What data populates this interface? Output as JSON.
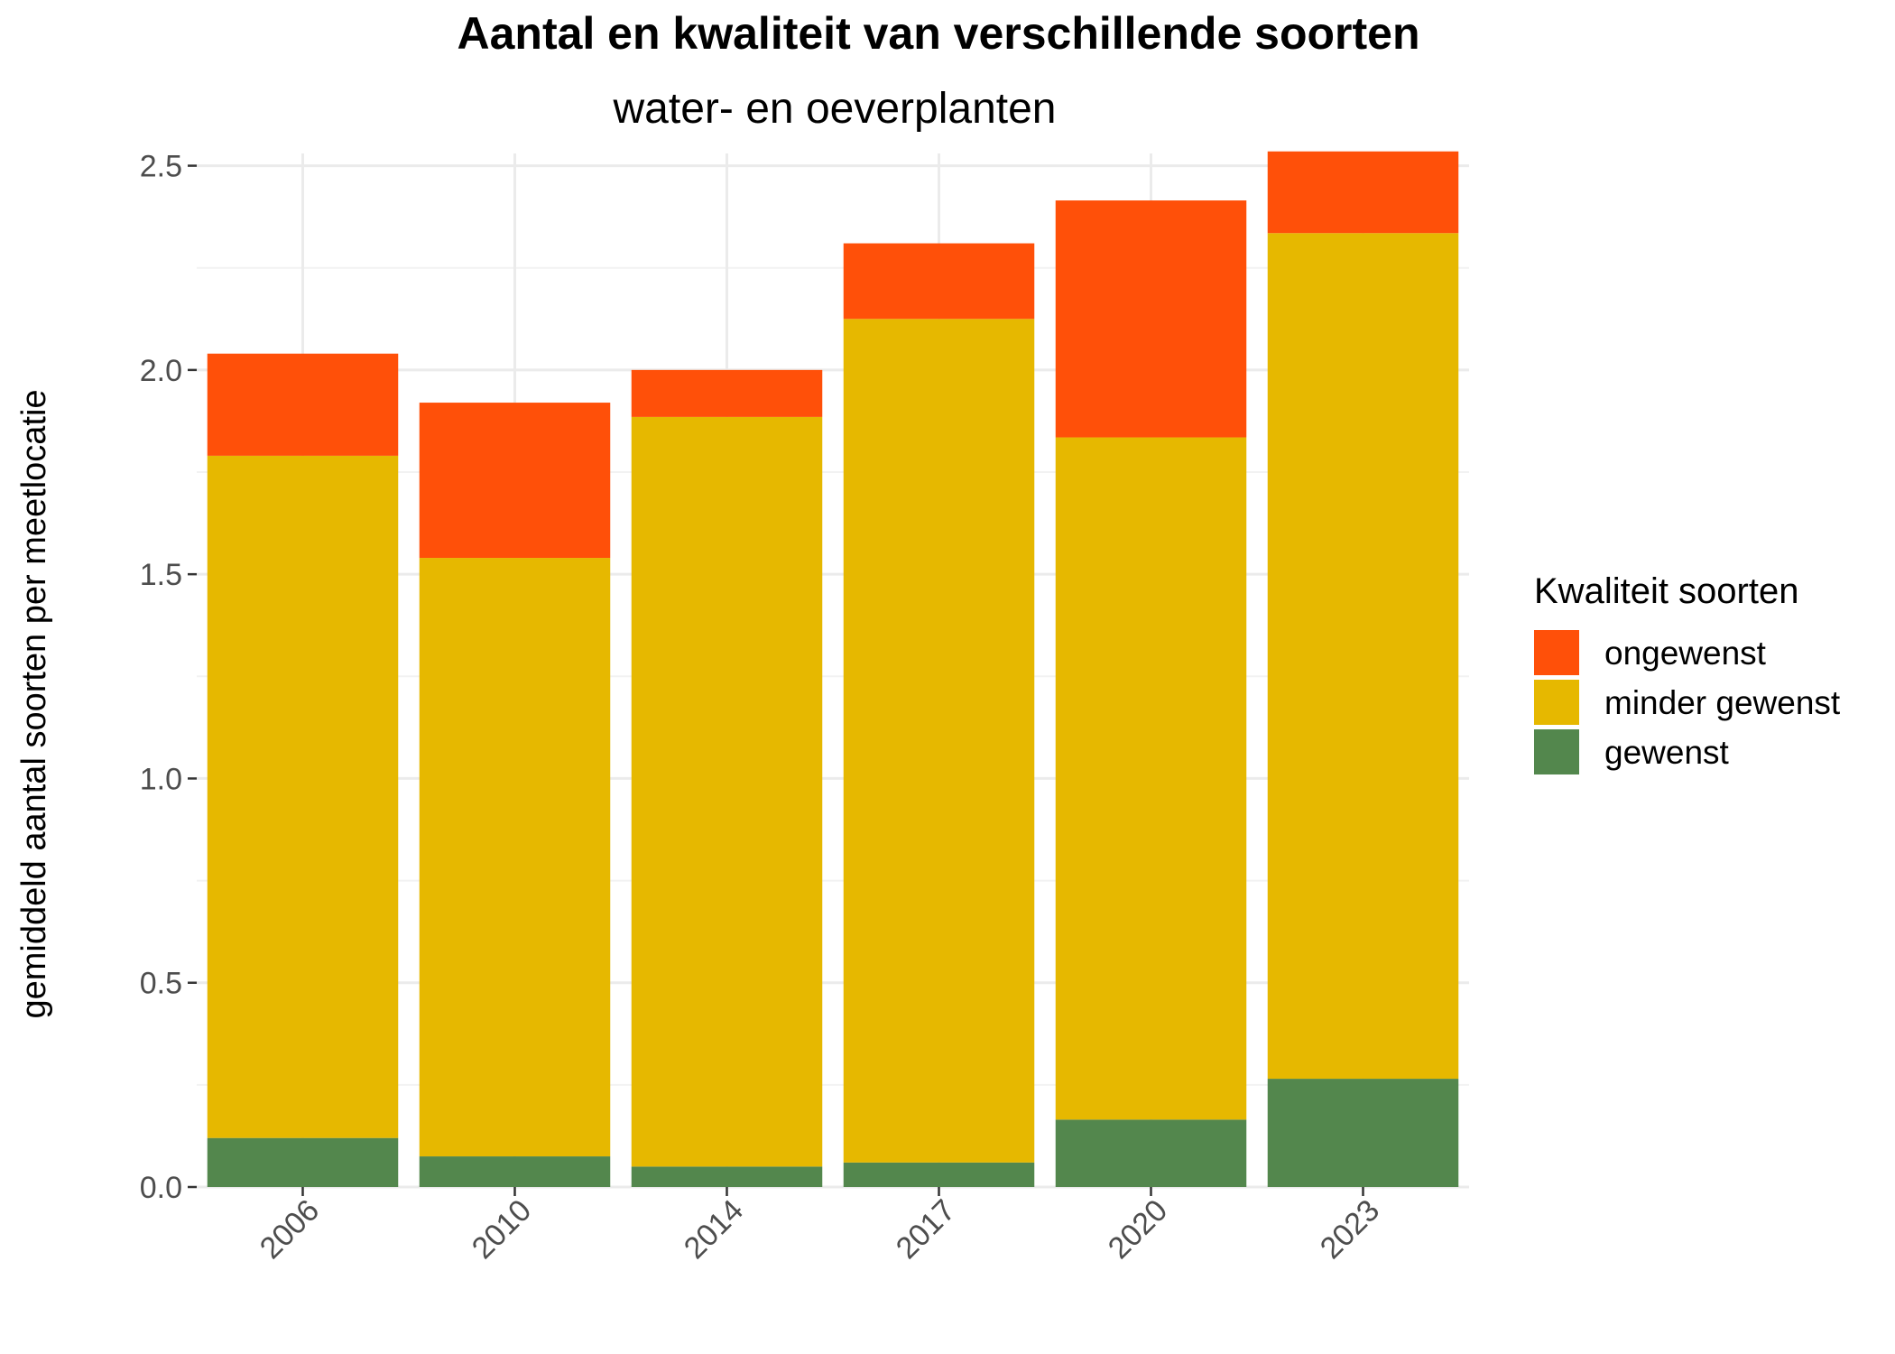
{
  "chart_data": {
    "type": "bar",
    "stacked": true,
    "title": "Aantal en kwaliteit van verschillende soorten",
    "subtitle": "water- en oeverplanten",
    "xlabel": "",
    "ylabel": "gemiddeld aantal soorten per meetlocatie",
    "categories": [
      "2006",
      "2010",
      "2014",
      "2017",
      "2020",
      "2023"
    ],
    "ylim": [
      0,
      2.53
    ],
    "yticks": [
      0.0,
      0.5,
      1.0,
      1.5,
      2.0,
      2.5
    ],
    "ytick_labels": [
      "0.0",
      "0.5",
      "1.0",
      "1.5",
      "2.0",
      "2.5"
    ],
    "grid": true,
    "legend": {
      "title": "Kwaliteit soorten",
      "placement": "right",
      "entries": [
        "ongewenst",
        "minder gewenst",
        "gewenst"
      ]
    },
    "series": [
      {
        "name": "gewenst",
        "color": "#53874d",
        "values": [
          0.12,
          0.075,
          0.05,
          0.06,
          0.165,
          0.265
        ]
      },
      {
        "name": "minder gewenst",
        "color": "#e6b800",
        "values": [
          1.67,
          1.465,
          1.835,
          2.065,
          1.67,
          2.07
        ]
      },
      {
        "name": "ongewenst",
        "color": "#ff5009",
        "values": [
          0.25,
          0.38,
          0.115,
          0.185,
          0.58,
          0.2
        ]
      }
    ]
  }
}
